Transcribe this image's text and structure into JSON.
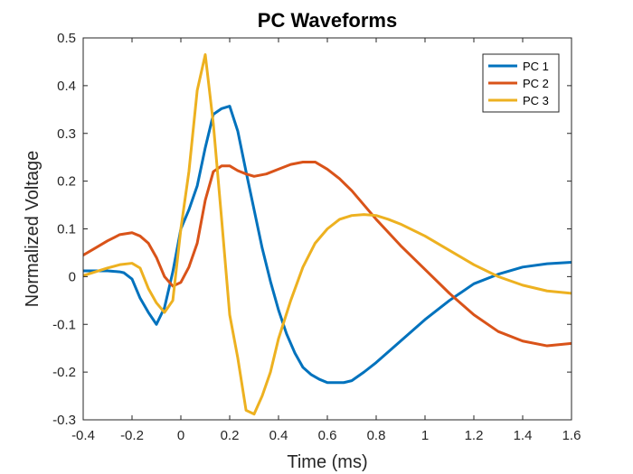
{
  "chart_data": {
    "type": "line",
    "title": "PC Waveforms",
    "xlabel": "Time (ms)",
    "ylabel": "Normalized Voltage",
    "xlim": [
      -0.4,
      1.6
    ],
    "ylim": [
      -0.3,
      0.5
    ],
    "xticks": [
      "-0.4",
      "-0.2",
      "0",
      "0.2",
      "0.4",
      "0.6",
      "0.8",
      "1",
      "1.2",
      "1.4",
      "1.6"
    ],
    "yticks": [
      "-0.3",
      "-0.2",
      "-0.1",
      "0",
      "0.1",
      "0.2",
      "0.3",
      "0.4",
      "0.5"
    ],
    "grid": false,
    "legend_position": "top-right",
    "series": [
      {
        "name": "PC 1",
        "color": "#0072BD",
        "x": [
          -0.4,
          -0.35,
          -0.3,
          -0.25,
          -0.233,
          -0.2,
          -0.167,
          -0.133,
          -0.1,
          -0.067,
          -0.033,
          0.0,
          0.033,
          0.067,
          0.1,
          0.133,
          0.167,
          0.2,
          0.233,
          0.267,
          0.3,
          0.333,
          0.367,
          0.4,
          0.433,
          0.467,
          0.5,
          0.533,
          0.567,
          0.6,
          0.633,
          0.667,
          0.7,
          0.75,
          0.8,
          0.9,
          1.0,
          1.1,
          1.2,
          1.3,
          1.4,
          1.5,
          1.6
        ],
        "y": [
          0.012,
          0.012,
          0.012,
          0.01,
          0.008,
          -0.005,
          -0.045,
          -0.075,
          -0.1,
          -0.065,
          0.01,
          0.1,
          0.14,
          0.19,
          0.27,
          0.34,
          0.352,
          0.357,
          0.305,
          0.22,
          0.14,
          0.06,
          -0.01,
          -0.07,
          -0.12,
          -0.16,
          -0.19,
          -0.205,
          -0.215,
          -0.222,
          -0.222,
          -0.222,
          -0.218,
          -0.2,
          -0.18,
          -0.135,
          -0.09,
          -0.05,
          -0.015,
          0.005,
          0.02,
          0.027,
          0.03
        ]
      },
      {
        "name": "PC 2",
        "color": "#D95319",
        "x": [
          -0.4,
          -0.35,
          -0.3,
          -0.25,
          -0.2,
          -0.167,
          -0.133,
          -0.1,
          -0.067,
          -0.033,
          0.0,
          0.033,
          0.067,
          0.1,
          0.133,
          0.167,
          0.2,
          0.233,
          0.267,
          0.3,
          0.35,
          0.4,
          0.45,
          0.5,
          0.55,
          0.6,
          0.65,
          0.7,
          0.8,
          0.9,
          1.0,
          1.1,
          1.2,
          1.3,
          1.4,
          1.5,
          1.6
        ],
        "y": [
          0.045,
          0.06,
          0.075,
          0.088,
          0.092,
          0.085,
          0.07,
          0.04,
          0.0,
          -0.02,
          -0.012,
          0.02,
          0.07,
          0.16,
          0.22,
          0.232,
          0.232,
          0.222,
          0.215,
          0.21,
          0.215,
          0.225,
          0.235,
          0.24,
          0.24,
          0.225,
          0.205,
          0.18,
          0.12,
          0.065,
          0.015,
          -0.035,
          -0.08,
          -0.115,
          -0.135,
          -0.145,
          -0.14
        ]
      },
      {
        "name": "PC 3",
        "color": "#EDB120",
        "x": [
          -0.4,
          -0.35,
          -0.3,
          -0.25,
          -0.2,
          -0.167,
          -0.133,
          -0.1,
          -0.067,
          -0.033,
          0.0,
          0.033,
          0.067,
          0.1,
          0.133,
          0.167,
          0.2,
          0.233,
          0.267,
          0.3,
          0.333,
          0.367,
          0.4,
          0.45,
          0.5,
          0.55,
          0.6,
          0.65,
          0.7,
          0.75,
          0.8,
          0.85,
          0.9,
          1.0,
          1.1,
          1.2,
          1.3,
          1.4,
          1.5,
          1.6
        ],
        "y": [
          0.002,
          0.01,
          0.018,
          0.025,
          0.028,
          0.018,
          -0.025,
          -0.055,
          -0.075,
          -0.05,
          0.1,
          0.22,
          0.39,
          0.465,
          0.32,
          0.12,
          -0.08,
          -0.17,
          -0.28,
          -0.288,
          -0.25,
          -0.2,
          -0.13,
          -0.05,
          0.02,
          0.07,
          0.1,
          0.12,
          0.128,
          0.13,
          0.128,
          0.12,
          0.11,
          0.085,
          0.055,
          0.025,
          0.0,
          -0.018,
          -0.03,
          -0.035
        ]
      }
    ]
  }
}
